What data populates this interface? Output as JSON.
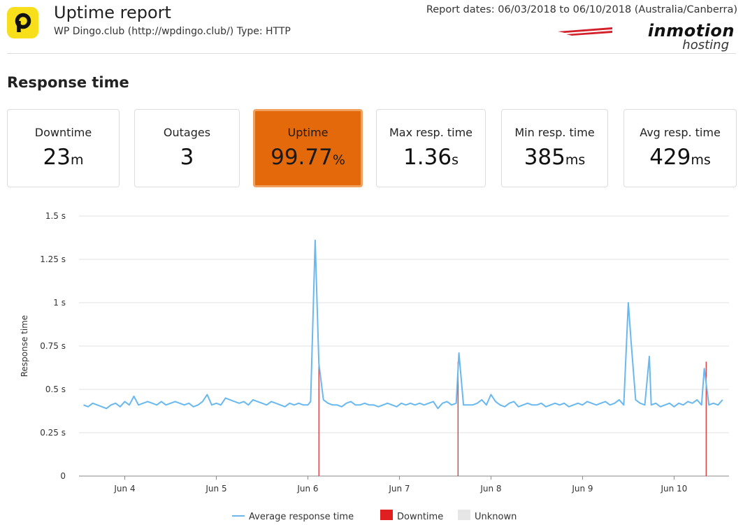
{
  "header": {
    "title": "Uptime report",
    "subtitle": "WP Dingo.club (http://wpdingo.club/) Type: HTTP",
    "report_dates": "Report dates: 06/03/2018 to 06/10/2018 (Australia/Canberra)",
    "brand_main": "inmotion",
    "brand_sub": "hosting",
    "logo_letter": "p"
  },
  "section_title": "Response time",
  "stats": [
    {
      "label": "Downtime",
      "value": "23",
      "unit": "m"
    },
    {
      "label": "Outages",
      "value": "3",
      "unit": ""
    },
    {
      "label": "Uptime",
      "value": "99.77",
      "unit": "%"
    },
    {
      "label": "Max resp. time",
      "value": "1.36",
      "unit": "s"
    },
    {
      "label": "Min resp. time",
      "value": "385",
      "unit": "ms"
    },
    {
      "label": "Avg resp. time",
      "value": "429",
      "unit": "ms"
    }
  ],
  "colors": {
    "highlight": "#e4690a",
    "line": "#6ab8f0",
    "downtime": "#e02020",
    "unknown": "#e6e6e6",
    "grid": "#e0e0e0"
  },
  "chart_data": {
    "type": "line",
    "ylabel": "Response time",
    "xlabel": "",
    "ylim": [
      0,
      1.5
    ],
    "yticks": [
      "0",
      "0.25 s",
      "0.5 s",
      "0.75 s",
      "1 s",
      "1.25 s",
      "1.5 s"
    ],
    "xlim": [
      3.5,
      10.6
    ],
    "xticks": [
      {
        "x": 4,
        "label": "Jun 4"
      },
      {
        "x": 5,
        "label": "Jun 5"
      },
      {
        "x": 6,
        "label": "Jun 6"
      },
      {
        "x": 7,
        "label": "Jun 7"
      },
      {
        "x": 8,
        "label": "Jun 8"
      },
      {
        "x": 9,
        "label": "Jun 9"
      },
      {
        "x": 10,
        "label": "Jun 10"
      }
    ],
    "grid": true,
    "legend_position": "bottom",
    "legend": [
      "Average response time",
      "Downtime",
      "Unknown"
    ],
    "downtime_events": [
      6.12,
      7.64,
      10.35
    ],
    "series": [
      {
        "name": "Average response time",
        "x": [
          3.55,
          3.6,
          3.65,
          3.7,
          3.75,
          3.8,
          3.85,
          3.9,
          3.95,
          4.0,
          4.05,
          4.1,
          4.15,
          4.2,
          4.25,
          4.3,
          4.35,
          4.4,
          4.45,
          4.5,
          4.55,
          4.6,
          4.65,
          4.7,
          4.75,
          4.8,
          4.85,
          4.9,
          4.95,
          5.0,
          5.05,
          5.1,
          5.15,
          5.2,
          5.25,
          5.3,
          5.35,
          5.4,
          5.45,
          5.5,
          5.55,
          5.6,
          5.65,
          5.7,
          5.75,
          5.8,
          5.85,
          5.9,
          5.95,
          6.0,
          6.03,
          6.08,
          6.12,
          6.17,
          6.22,
          6.27,
          6.32,
          6.37,
          6.42,
          6.47,
          6.52,
          6.57,
          6.62,
          6.67,
          6.72,
          6.77,
          6.82,
          6.87,
          6.92,
          6.97,
          7.02,
          7.07,
          7.12,
          7.17,
          7.22,
          7.27,
          7.32,
          7.37,
          7.42,
          7.47,
          7.52,
          7.57,
          7.62,
          7.65,
          7.7,
          7.75,
          7.8,
          7.85,
          7.9,
          7.95,
          8.0,
          8.05,
          8.1,
          8.15,
          8.2,
          8.25,
          8.3,
          8.35,
          8.4,
          8.45,
          8.5,
          8.55,
          8.6,
          8.65,
          8.7,
          8.75,
          8.8,
          8.85,
          8.9,
          8.95,
          9.0,
          9.05,
          9.1,
          9.15,
          9.2,
          9.25,
          9.3,
          9.35,
          9.4,
          9.45,
          9.5,
          9.53,
          9.58,
          9.63,
          9.68,
          9.73,
          9.75,
          9.8,
          9.85,
          9.9,
          9.95,
          10.0,
          10.05,
          10.1,
          10.15,
          10.2,
          10.25,
          10.3,
          10.33,
          10.38,
          10.43,
          10.48,
          10.53
        ],
        "values": [
          0.41,
          0.4,
          0.42,
          0.41,
          0.4,
          0.39,
          0.41,
          0.42,
          0.4,
          0.43,
          0.41,
          0.46,
          0.41,
          0.42,
          0.43,
          0.42,
          0.41,
          0.43,
          0.41,
          0.42,
          0.43,
          0.42,
          0.41,
          0.42,
          0.4,
          0.41,
          0.43,
          0.47,
          0.41,
          0.42,
          0.41,
          0.45,
          0.44,
          0.43,
          0.42,
          0.43,
          0.41,
          0.44,
          0.43,
          0.42,
          0.41,
          0.43,
          0.42,
          0.41,
          0.4,
          0.42,
          0.41,
          0.42,
          0.41,
          0.41,
          0.43,
          1.36,
          0.65,
          0.44,
          0.42,
          0.41,
          0.41,
          0.4,
          0.42,
          0.43,
          0.41,
          0.41,
          0.42,
          0.41,
          0.41,
          0.4,
          0.41,
          0.42,
          0.41,
          0.4,
          0.42,
          0.41,
          0.42,
          0.41,
          0.42,
          0.41,
          0.42,
          0.43,
          0.39,
          0.42,
          0.43,
          0.41,
          0.42,
          0.71,
          0.41,
          0.41,
          0.41,
          0.42,
          0.44,
          0.41,
          0.47,
          0.43,
          0.41,
          0.4,
          0.42,
          0.43,
          0.4,
          0.41,
          0.42,
          0.41,
          0.41,
          0.42,
          0.4,
          0.41,
          0.42,
          0.41,
          0.42,
          0.4,
          0.41,
          0.42,
          0.41,
          0.43,
          0.42,
          0.41,
          0.42,
          0.43,
          0.41,
          0.42,
          0.44,
          0.41,
          1.0,
          0.78,
          0.44,
          0.42,
          0.41,
          0.69,
          0.41,
          0.42,
          0.4,
          0.41,
          0.42,
          0.4,
          0.42,
          0.41,
          0.43,
          0.42,
          0.44,
          0.41,
          0.62,
          0.41,
          0.42,
          0.41,
          0.44
        ]
      }
    ]
  }
}
